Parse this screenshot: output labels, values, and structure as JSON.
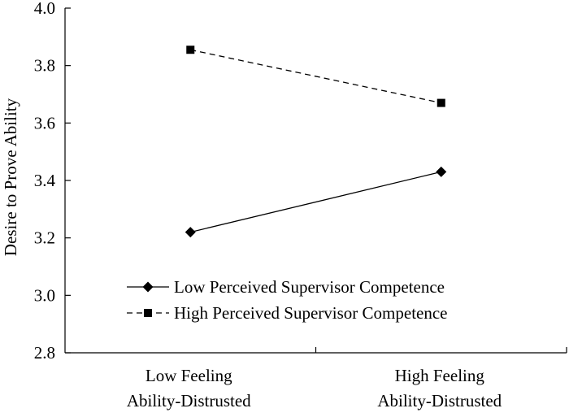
{
  "chart_data": {
    "type": "line",
    "title": "",
    "xlabel": "",
    "ylabel": "Desire to Prove Ability",
    "categories": [
      "Low Feeling Ability-Distrusted",
      "High Feeling Ability-Distrusted"
    ],
    "category_lines": [
      [
        "Low Feeling",
        "Ability-Distrusted"
      ],
      [
        "High Feeling",
        "Ability-Distrusted"
      ]
    ],
    "ylim": [
      2.8,
      4.0
    ],
    "yticks": [
      "2.8",
      "3.0",
      "3.2",
      "3.4",
      "3.6",
      "3.8",
      "4.0"
    ],
    "grid": false,
    "legend_position": "bottom-left",
    "series": [
      {
        "name": "Low Perceived Supervisor Competence",
        "values": [
          3.22,
          3.43
        ],
        "marker": "diamond",
        "line_style": "solid",
        "color": "#000000"
      },
      {
        "name": "High Perceived Supervisor Competence",
        "values": [
          3.855,
          3.67
        ],
        "marker": "square",
        "line_style": "dashed",
        "color": "#000000"
      }
    ]
  }
}
